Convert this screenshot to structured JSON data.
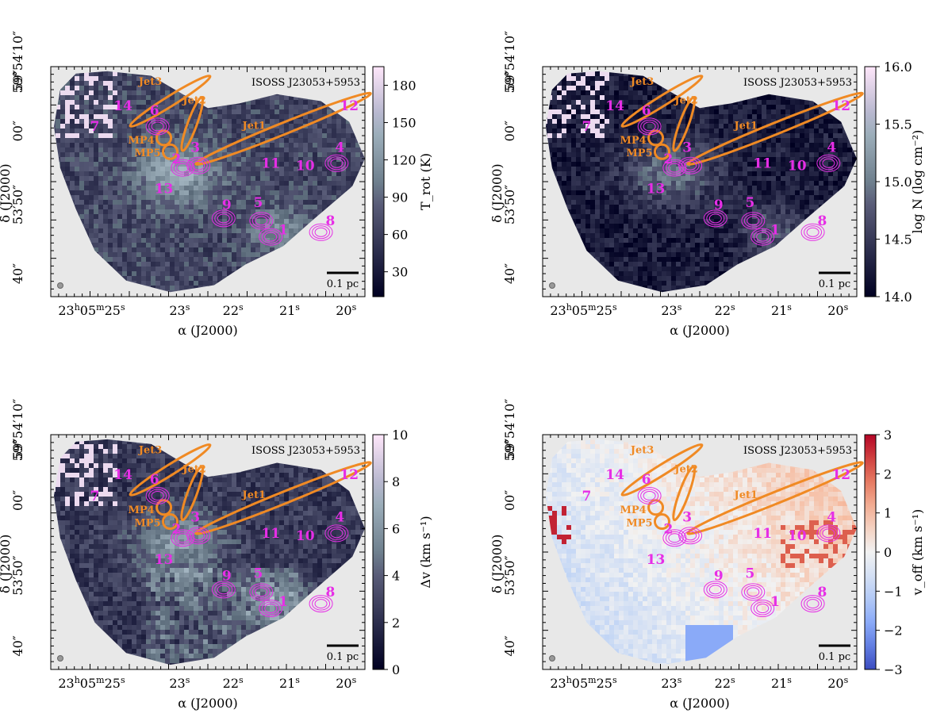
{
  "figure": {
    "source_label": "ISOSS J23053+5953",
    "scale_bar_label": "0.1 pc",
    "colors": {
      "jet": "#f08a24",
      "core": "#e62ee6",
      "background": "#e8e8e8",
      "scale_bar": "#000000"
    },
    "ra_tick_labels": [
      {
        "main": "23",
        "sup1": "h",
        "mid": "05",
        "sup2": "m",
        "end": "25",
        "sup3": "s"
      },
      {
        "main": "23",
        "sup3": "s"
      },
      {
        "main": "22",
        "sup3": "s"
      },
      {
        "main": "21",
        "sup3": "s"
      },
      {
        "main": "20",
        "sup3": "s"
      }
    ],
    "dec_tick_labels": [
      "59°54′10″",
      "59″",
      "00″",
      "53′50″",
      "40″"
    ],
    "xlabel": "α (J2000)",
    "ylabel": "δ (J2000)"
  },
  "chart_data": [
    {
      "type": "heatmap",
      "panel": "top-left",
      "colormap": "bone",
      "colorbar_label": "T_rot (K)",
      "colorbar_ticks": [
        30,
        60,
        90,
        120,
        150,
        180
      ],
      "colorbar_range": [
        10,
        195
      ],
      "source_label": "ISOSS J23053+5953",
      "xlabel": "α (J2000)",
      "ylabel": "δ (J2000)"
    },
    {
      "type": "heatmap",
      "panel": "top-right",
      "colormap": "bone",
      "colorbar_label": "log N (log cm⁻²)",
      "colorbar_ticks": [
        14.0,
        14.5,
        15.0,
        15.5,
        16.0
      ],
      "colorbar_range": [
        14.0,
        16.0
      ],
      "source_label": "ISOSS J23053+5953",
      "xlabel": "α (J2000)",
      "ylabel": "δ (J2000)"
    },
    {
      "type": "heatmap",
      "panel": "bottom-left",
      "colormap": "bone",
      "colorbar_label": "Δv (km s⁻¹)",
      "colorbar_ticks": [
        0,
        2,
        4,
        6,
        8,
        10
      ],
      "colorbar_range": [
        0,
        10
      ],
      "source_label": "ISOSS J23053+5953",
      "xlabel": "α (J2000)",
      "ylabel": "δ (J2000)"
    },
    {
      "type": "heatmap",
      "panel": "bottom-right",
      "colormap": "coolwarm",
      "colorbar_label": "v_off (km s⁻¹)",
      "colorbar_ticks": [
        -3,
        -2,
        -1,
        0,
        1,
        2,
        3
      ],
      "colorbar_range": [
        -3,
        3
      ],
      "source_label": "ISOSS J23053+5953",
      "xlabel": "α (J2000)",
      "ylabel": "δ (J2000)"
    }
  ],
  "annotations": {
    "cores": [
      "1",
      "2",
      "3",
      "4",
      "5",
      "6",
      "7",
      "8",
      "9",
      "10",
      "11",
      "12",
      "13",
      "14"
    ],
    "jets": [
      "Jet1",
      "Jet2",
      "Jet3"
    ],
    "mp_positions": [
      "MP4",
      "MP5"
    ]
  }
}
